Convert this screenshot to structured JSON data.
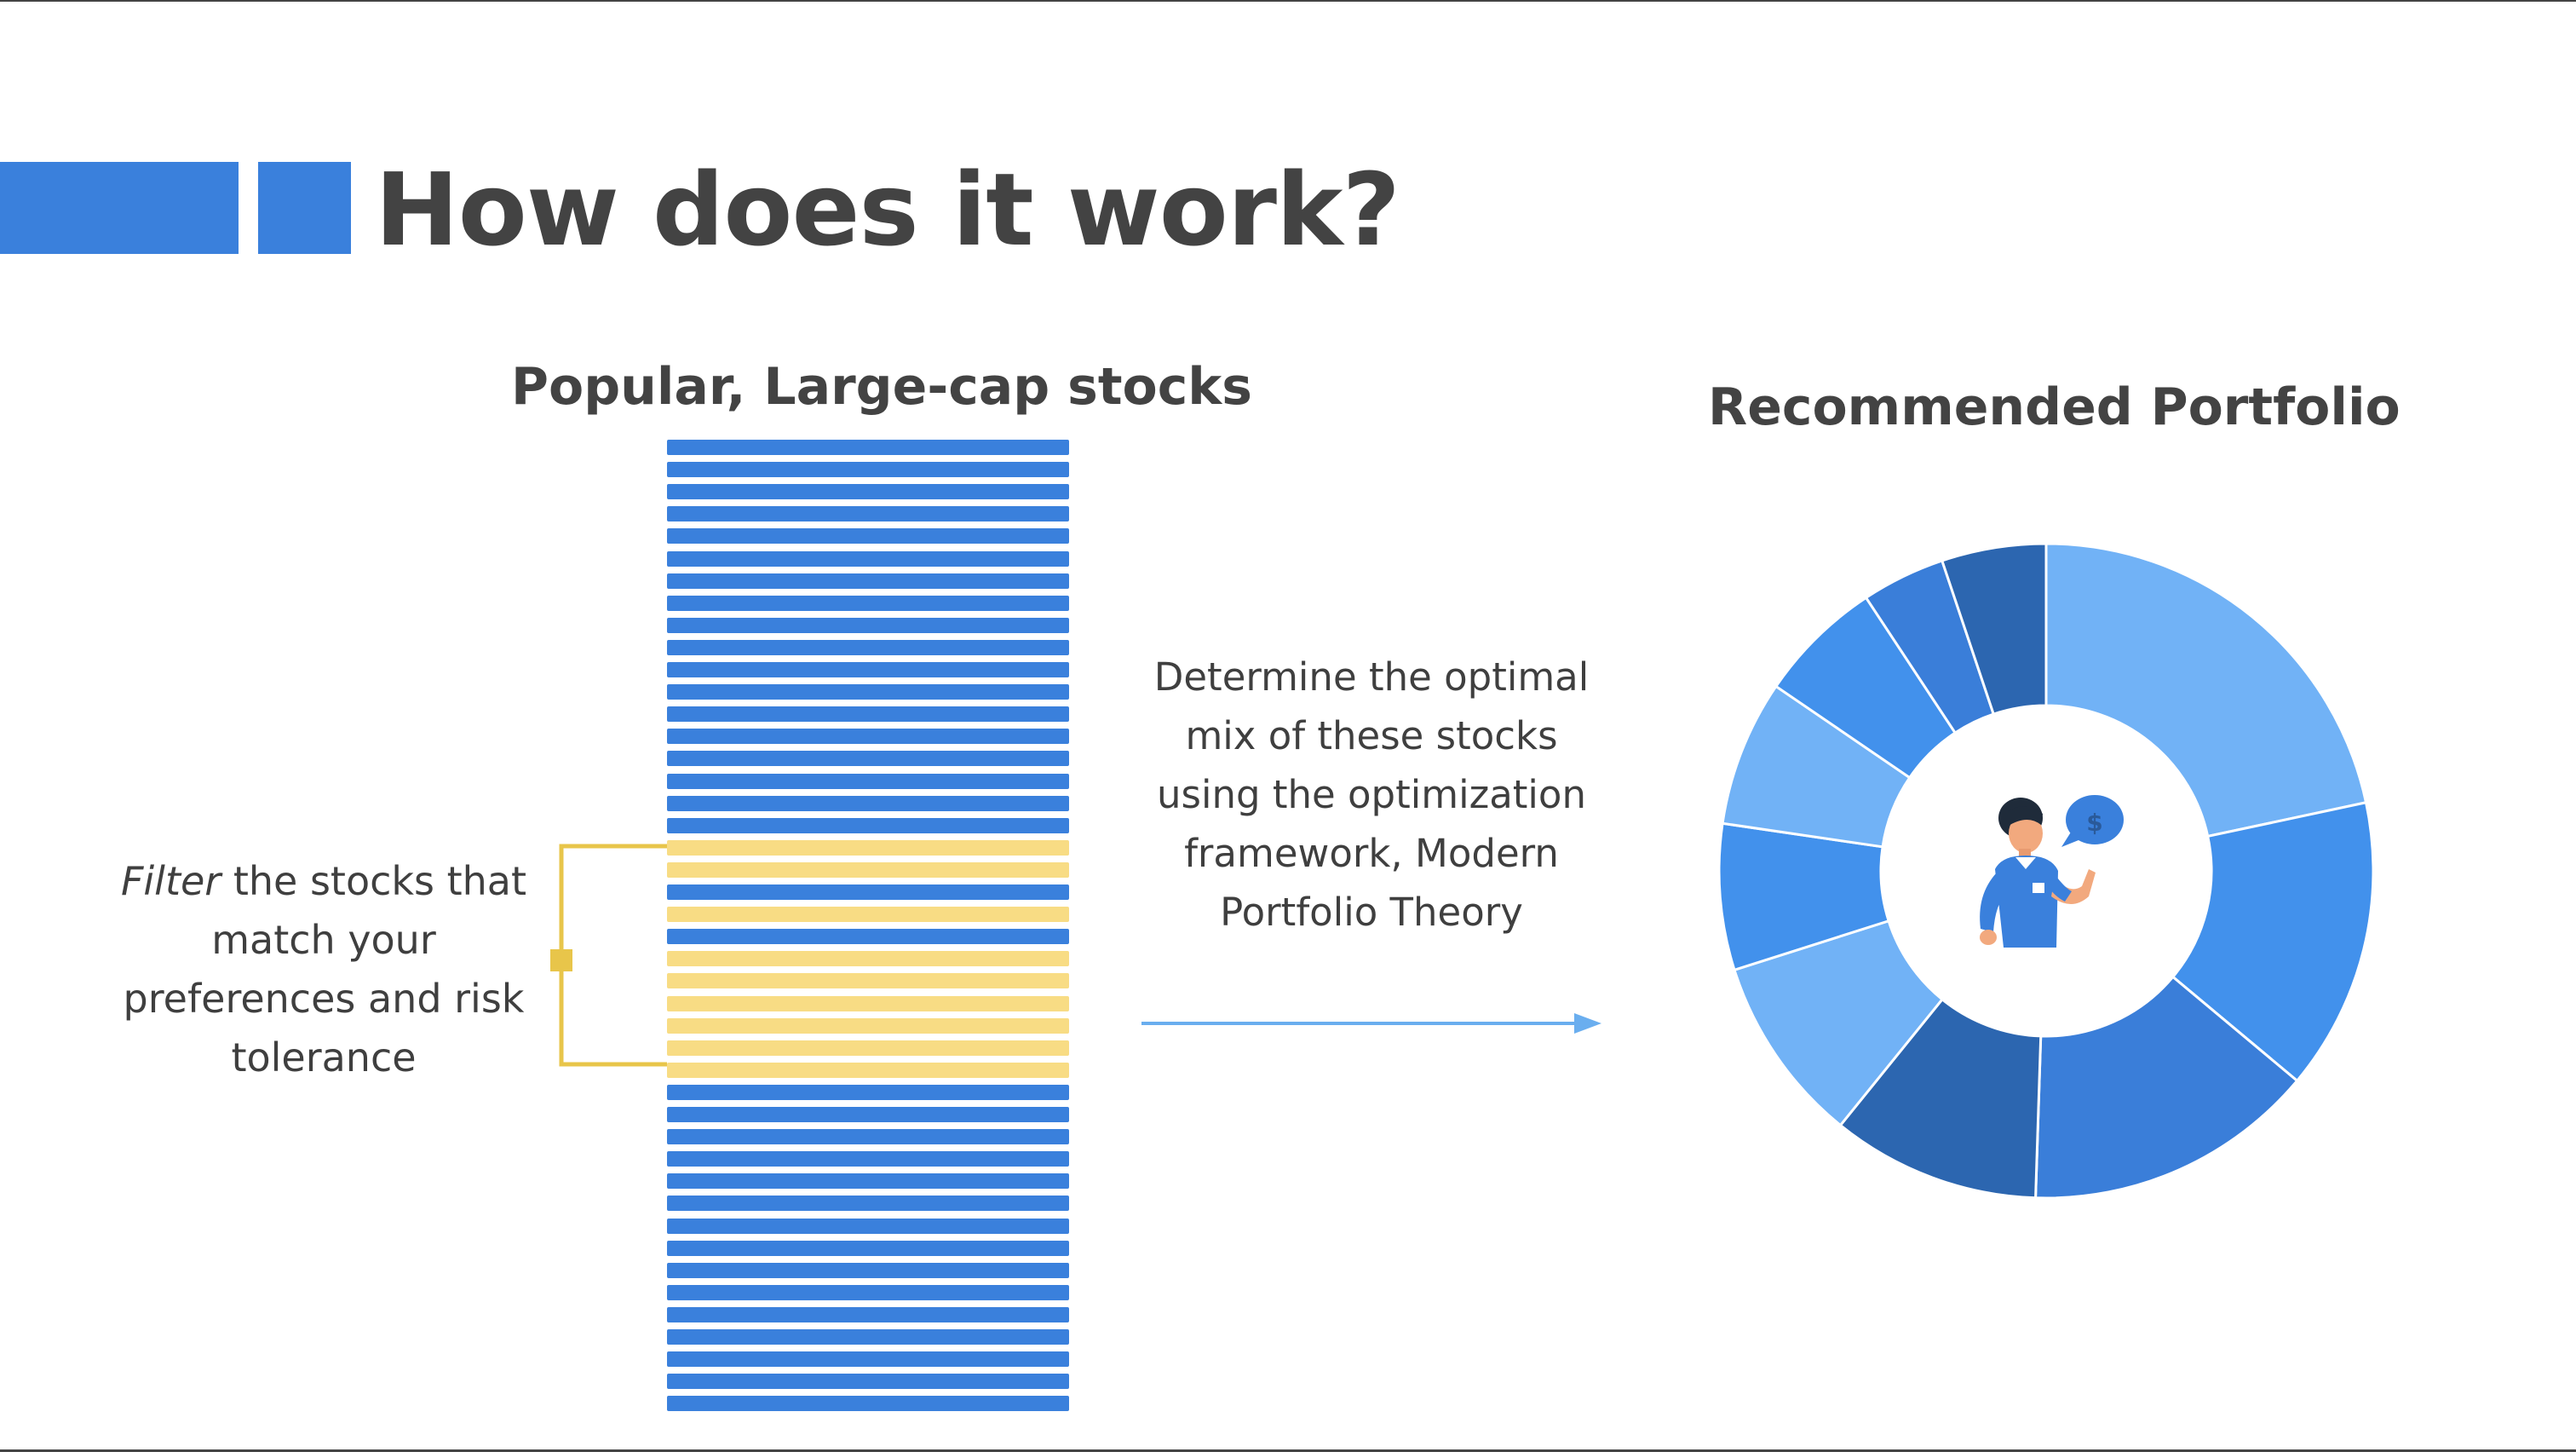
{
  "slide": {
    "title": "How does it work?"
  },
  "stocks": {
    "title": "Popular, Large-cap stocks",
    "bars": [
      "b",
      "b",
      "b",
      "b",
      "b",
      "b",
      "b",
      "b",
      "b",
      "b",
      "b",
      "b",
      "b",
      "b",
      "b",
      "b",
      "b",
      "b",
      "y",
      "y",
      "b",
      "y",
      "b",
      "y",
      "y",
      "y",
      "y",
      "y",
      "y",
      "b",
      "b",
      "b",
      "b",
      "b",
      "b",
      "b",
      "b",
      "b",
      "b",
      "b",
      "b",
      "b",
      "b",
      "b"
    ],
    "colors": {
      "b": "#3a80dc",
      "y": "#f8dc84"
    }
  },
  "filter": {
    "emphasis": "Filter",
    "rest": " the stocks that match your preferences and risk tolerance"
  },
  "determine": {
    "text": "Determine the optimal mix of these stocks using the optimization framework, Modern Portfolio Theory"
  },
  "portfolio": {
    "title": "Recommended Portfolio",
    "center_icon": "investor-with-dollar-speech-bubble-icon",
    "bubble_symbol": "$"
  },
  "colors": {
    "accent": "#3a80dc",
    "bracket": "#e8c54a",
    "arrow": "#6aaeef",
    "title_text": "#434343"
  },
  "chart_data": {
    "type": "pie",
    "donut": true,
    "title": "",
    "slices": [
      {
        "value": 21,
        "color": "#71b2f6"
      },
      {
        "value": 14,
        "color": "#4291ec"
      },
      {
        "value": 14,
        "color": "#3a7ed9"
      },
      {
        "value": 10,
        "color": "#2c66b0"
      },
      {
        "value": 9,
        "color": "#71b2f6"
      },
      {
        "value": 7,
        "color": "#4291ec"
      },
      {
        "value": 7,
        "color": "#71b2f6"
      },
      {
        "value": 6,
        "color": "#4291ec"
      },
      {
        "value": 4,
        "color": "#3a7ed9"
      },
      {
        "value": 5,
        "color": "#2c66b0"
      }
    ]
  }
}
